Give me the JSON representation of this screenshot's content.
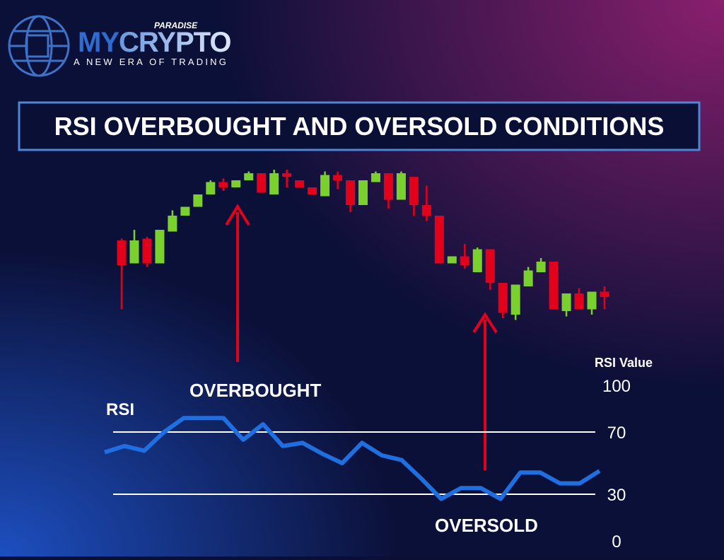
{
  "logo": {
    "brand_top": "PARADISE",
    "brand_a": "MY",
    "brand_b": "CRYPTO",
    "tagline": "A NEW ERA OF TRADING"
  },
  "title": "RSI OVERBOUGHT AND OVERSOLD CONDITIONS",
  "chart_data": [
    {
      "type": "candlestick",
      "annotations": [
        "OVERBOUGHT",
        "OVERSOLD"
      ],
      "up_color": "#7ad12e",
      "down_color": "#e3001b",
      "ylim": [
        0,
        100
      ],
      "open": [
        52,
        39,
        53,
        39,
        57,
        66,
        71,
        78,
        85,
        82,
        86,
        90,
        78,
        90,
        86,
        82,
        77,
        89,
        86,
        72,
        85,
        90,
        75,
        88,
        72,
        66,
        39,
        43,
        34,
        47,
        28,
        10,
        26,
        34,
        40,
        12,
        22,
        13,
        23
      ],
      "high": [
        53,
        58,
        54,
        58,
        69,
        71,
        78,
        86,
        87,
        86,
        91,
        90,
        92,
        92,
        86,
        82,
        91,
        91,
        86,
        86,
        91,
        90,
        91,
        88,
        83,
        66,
        43,
        50,
        48,
        47,
        28,
        27,
        37,
        42,
        40,
        22,
        25,
        23,
        26
      ],
      "low": [
        13,
        39,
        37,
        39,
        57,
        66,
        71,
        78,
        80,
        82,
        86,
        79,
        78,
        82,
        82,
        78,
        77,
        81,
        68,
        72,
        85,
        70,
        75,
        66,
        63,
        39,
        39,
        36,
        34,
        24,
        8,
        7,
        26,
        34,
        13,
        9,
        13,
        10,
        13
      ],
      "close": [
        38,
        52,
        39,
        58,
        66,
        71,
        78,
        85,
        82,
        86,
        90,
        79,
        90,
        88,
        82,
        78,
        89,
        86,
        72,
        86,
        90,
        75,
        90,
        72,
        66,
        39,
        43,
        38,
        47,
        28,
        11,
        27,
        35,
        40,
        13,
        22,
        13,
        23,
        20
      ]
    },
    {
      "type": "line",
      "y_label": "RSI Value",
      "series": [
        {
          "name": "RSI",
          "color": "#1f6fe0",
          "values": [
            57,
            61,
            58,
            70,
            79,
            79,
            79,
            65,
            75,
            61,
            63,
            56,
            50,
            63,
            55,
            52,
            40,
            27,
            34,
            34,
            27,
            44,
            44,
            37,
            37,
            45
          ]
        }
      ],
      "ylim": [
        0,
        100
      ],
      "yticks": [
        0,
        30,
        70,
        100
      ],
      "grid_color": "#ffffff"
    }
  ]
}
